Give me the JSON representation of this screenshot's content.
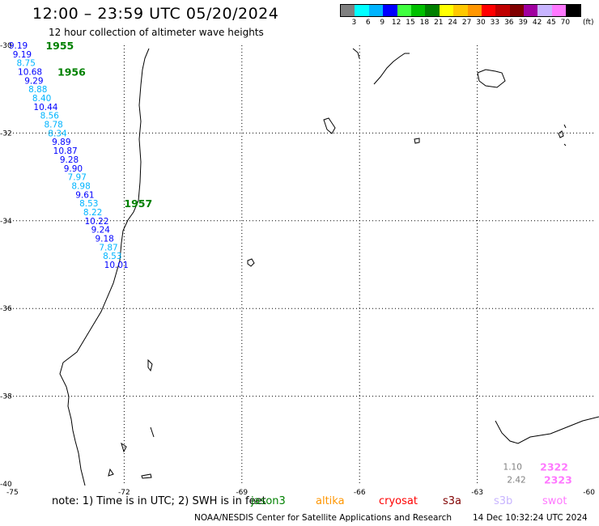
{
  "header": {
    "title": "12:00 – 23:59 UTC 05/20/2024",
    "subtitle": "12 hour collection of altimeter wave heights"
  },
  "legend": {
    "unit": "(ft)",
    "ticks": [
      "3",
      "6",
      "9",
      "12",
      "15",
      "18",
      "21",
      "24",
      "27",
      "30",
      "33",
      "36",
      "39",
      "42",
      "45",
      "70"
    ],
    "colors": [
      "#808080",
      "#00ffff",
      "#00b4ff",
      "#0000ff",
      "#40ff40",
      "#00c000",
      "#008000",
      "#ffff00",
      "#ffc800",
      "#ff9600",
      "#ff0000",
      "#c00000",
      "#800000",
      "#a000a0",
      "#c8b4ff",
      "#ff78ff",
      "#000000"
    ]
  },
  "footer": {
    "note": "note:  1) Time is in UTC;  2) SWH is in feet",
    "satellites": [
      {
        "name": "jason3",
        "color": "#008000"
      },
      {
        "name": "altika",
        "color": "#ff9600"
      },
      {
        "name": "cryosat",
        "color": "#ff0000"
      },
      {
        "name": "s3a",
        "color": "#800000"
      },
      {
        "name": "s3b",
        "color": "#c8b4ff"
      },
      {
        "name": "swot",
        "color": "#ff78ff"
      }
    ],
    "credit": "NOAA/NESDIS Center for Satellite Applications and Research",
    "generated": "14 Dec 10:32:24 UTC 2024"
  },
  "chart_data": {
    "type": "scatter",
    "title": "12:00 – 23:59 UTC 05/20/2024",
    "subtitle": "12 hour collection of altimeter wave heights",
    "xlabel": "",
    "ylabel": "",
    "xlim": [
      -75,
      -60
    ],
    "ylim": [
      -40,
      -30
    ],
    "x_ticks": [
      "-75",
      "-72",
      "-69",
      "-66",
      "-63",
      "-60"
    ],
    "y_ticks": [
      "-30",
      "-32",
      "-34",
      "-36",
      "-38",
      "-40"
    ],
    "grid": true,
    "series": [
      {
        "name": "jason3",
        "values": [
          {
            "lat": -30.0,
            "lon": -74.7,
            "swh": "9.19",
            "color": "#0000ff"
          },
          {
            "lat": -30.2,
            "lon": -74.6,
            "swh": "9.19",
            "color": "#0000ff"
          },
          {
            "lat": -30.4,
            "lon": -74.5,
            "swh": "8.75",
            "color": "#00b4ff"
          },
          {
            "lat": -30.6,
            "lon": -74.4,
            "swh": "10.68",
            "color": "#0000ff"
          },
          {
            "lat": -30.8,
            "lon": -74.3,
            "swh": "9.29",
            "color": "#0000ff"
          },
          {
            "lat": -31.0,
            "lon": -74.2,
            "swh": "8.88",
            "color": "#00b4ff"
          },
          {
            "lat": -31.2,
            "lon": -74.1,
            "swh": "8.40",
            "color": "#00b4ff"
          },
          {
            "lat": -31.4,
            "lon": -74.0,
            "swh": "10.44",
            "color": "#0000ff"
          },
          {
            "lat": -31.6,
            "lon": -73.9,
            "swh": "8.56",
            "color": "#00b4ff"
          },
          {
            "lat": -31.8,
            "lon": -73.8,
            "swh": "8.78",
            "color": "#00b4ff"
          },
          {
            "lat": -32.0,
            "lon": -73.7,
            "swh": "8.34",
            "color": "#00b4ff"
          },
          {
            "lat": -32.2,
            "lon": -73.6,
            "swh": "9.89",
            "color": "#0000ff"
          },
          {
            "lat": -32.4,
            "lon": -73.5,
            "swh": "10.87",
            "color": "#0000ff"
          },
          {
            "lat": -32.6,
            "lon": -73.4,
            "swh": "9.28",
            "color": "#0000ff"
          },
          {
            "lat": -32.8,
            "lon": -73.3,
            "swh": "9.90",
            "color": "#0000ff"
          },
          {
            "lat": -33.0,
            "lon": -73.2,
            "swh": "7.97",
            "color": "#00b4ff"
          },
          {
            "lat": -33.2,
            "lon": -73.1,
            "swh": "8.98",
            "color": "#00b4ff"
          },
          {
            "lat": -33.4,
            "lon": -73.0,
            "swh": "9.61",
            "color": "#0000ff"
          },
          {
            "lat": -33.6,
            "lon": -72.9,
            "swh": "8.53",
            "color": "#00b4ff"
          },
          {
            "lat": -33.8,
            "lon": -72.8,
            "swh": "8.22",
            "color": "#00b4ff"
          },
          {
            "lat": -34.0,
            "lon": -72.7,
            "swh": "10.22",
            "color": "#0000ff"
          },
          {
            "lat": -34.2,
            "lon": -72.6,
            "swh": "9.24",
            "color": "#0000ff"
          },
          {
            "lat": -34.4,
            "lon": -72.5,
            "swh": "9.18",
            "color": "#0000ff"
          },
          {
            "lat": -34.6,
            "lon": -72.4,
            "swh": "7.87",
            "color": "#00b4ff"
          },
          {
            "lat": -34.8,
            "lon": -72.3,
            "swh": "8.53",
            "color": "#00b4ff"
          },
          {
            "lat": -35.0,
            "lon": -72.2,
            "swh": "10.01",
            "color": "#0000ff"
          }
        ],
        "time_labels": [
          {
            "text": "1955",
            "lat": -30.0,
            "lon": -74.0,
            "color": "#008000"
          },
          {
            "text": "1956",
            "lat": -30.6,
            "lon": -73.7,
            "color": "#008000"
          },
          {
            "text": "1957",
            "lat": -33.6,
            "lon": -72.0,
            "color": "#008000"
          }
        ]
      },
      {
        "name": "swot",
        "values": [
          {
            "lat": -39.6,
            "lon": -62.1,
            "swh": "1.10",
            "color": "#808080"
          },
          {
            "lat": -39.9,
            "lon": -62.0,
            "swh": "2.42",
            "color": "#808080"
          }
        ],
        "time_labels": [
          {
            "text": "2322",
            "lat": -39.6,
            "lon": -61.4,
            "color": "#ff78ff"
          },
          {
            "text": "2323",
            "lat": -39.9,
            "lon": -61.3,
            "color": "#ff78ff"
          }
        ]
      }
    ]
  }
}
